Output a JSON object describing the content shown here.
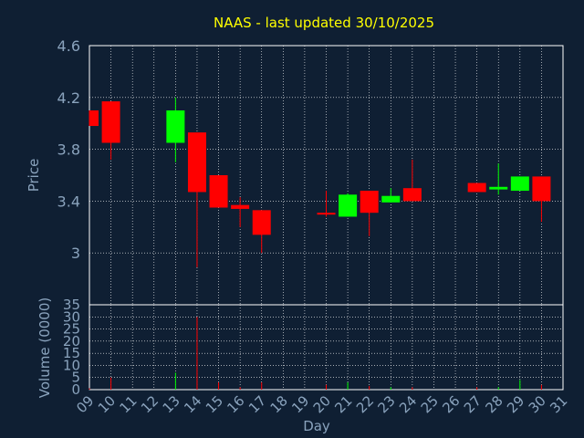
{
  "chart_data": {
    "type": "candlestick",
    "title": "NAAS - last updated 30/10/2025",
    "xlabel": "Day",
    "ylabel": "Price",
    "volume_label": "Volume (0000)",
    "x_ticks": [
      "09",
      "10",
      "11",
      "12",
      "13",
      "14",
      "15",
      "16",
      "17",
      "18",
      "19",
      "20",
      "21",
      "22",
      "23",
      "24",
      "25",
      "26",
      "27",
      "28",
      "29",
      "30",
      "31"
    ],
    "price_ticks": [
      "4.6",
      "4.2",
      "3.8",
      "3.4",
      "3"
    ],
    "price_tick_values": [
      4.6,
      4.2,
      3.8,
      3.4,
      3.0
    ],
    "price_ylim": [
      2.6,
      4.6
    ],
    "volume_ticks": [
      "35",
      "30",
      "25",
      "20",
      "15",
      "10",
      "5",
      "0"
    ],
    "volume_tick_values": [
      35,
      30,
      25,
      20,
      15,
      10,
      5,
      0
    ],
    "volume_ylim": [
      0,
      35
    ],
    "grid": true,
    "colors": {
      "up": "#00ff00",
      "down": "#ff0000",
      "background": "#0f1f33",
      "grid": "#ffffff",
      "title": "#ffff00",
      "text": "#8aa3bd"
    },
    "series": [
      {
        "day": 9.0,
        "open": 4.1,
        "high": 4.1,
        "low": 3.98,
        "close": 3.98,
        "volume": 0.5
      },
      {
        "day": 10.0,
        "open": 4.17,
        "high": 4.17,
        "low": 3.72,
        "close": 3.85,
        "volume": 5.0
      },
      {
        "day": 13.0,
        "open": 3.85,
        "high": 4.2,
        "low": 3.7,
        "close": 4.1,
        "volume": 7.0
      },
      {
        "day": 14.0,
        "open": 3.93,
        "high": 3.93,
        "low": 2.89,
        "close": 3.47,
        "volume": 30.0
      },
      {
        "day": 15.0,
        "open": 3.6,
        "high": 3.6,
        "low": 3.35,
        "close": 3.35,
        "volume": 3.0
      },
      {
        "day": 16.0,
        "open": 3.37,
        "high": 3.43,
        "low": 3.2,
        "close": 3.34,
        "volume": 1.0
      },
      {
        "day": 17.0,
        "open": 3.33,
        "high": 3.33,
        "low": 3.0,
        "close": 3.14,
        "volume": 3.0
      },
      {
        "day": 20.0,
        "open": 3.31,
        "high": 3.48,
        "low": 3.28,
        "close": 3.3,
        "volume": 2.0
      },
      {
        "day": 21.0,
        "open": 3.28,
        "high": 3.46,
        "low": 3.28,
        "close": 3.45,
        "volume": 3.0
      },
      {
        "day": 22.0,
        "open": 3.48,
        "high": 3.48,
        "low": 3.13,
        "close": 3.31,
        "volume": 1.5
      },
      {
        "day": 23.0,
        "open": 3.39,
        "high": 3.5,
        "low": 3.39,
        "close": 3.44,
        "volume": 1.0
      },
      {
        "day": 24.0,
        "open": 3.5,
        "high": 3.72,
        "low": 3.4,
        "close": 3.4,
        "volume": 1.0
      },
      {
        "day": 27.0,
        "open": 3.54,
        "high": 3.54,
        "low": 3.47,
        "close": 3.47,
        "volume": 1.0
      },
      {
        "day": 28.0,
        "open": 3.49,
        "high": 3.69,
        "low": 3.45,
        "close": 3.51,
        "volume": 1.0
      },
      {
        "day": 29.0,
        "open": 3.48,
        "high": 3.59,
        "low": 3.48,
        "close": 3.59,
        "volume": 4.0
      },
      {
        "day": 30.0,
        "open": 3.59,
        "high": 3.59,
        "low": 3.24,
        "close": 3.4,
        "volume": 2.0
      }
    ]
  }
}
